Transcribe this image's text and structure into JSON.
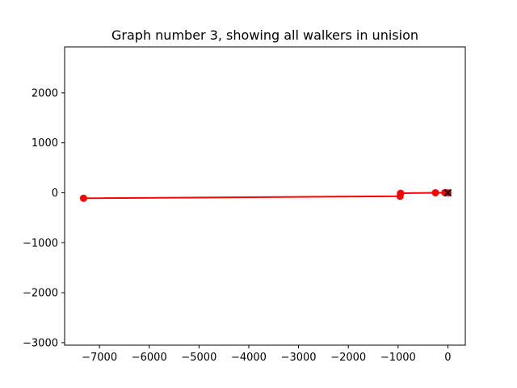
{
  "chart_data": {
    "type": "line",
    "title": "Graph number 3, showing all walkers in unision",
    "xlabel": "",
    "ylabel": "",
    "xlim": [
      -7700,
      350
    ],
    "ylim": [
      -3050,
      2920
    ],
    "xticks": [
      -7000,
      -6000,
      -5000,
      -4000,
      -3000,
      -2000,
      -1000,
      0
    ],
    "yticks": [
      -3000,
      -2000,
      -1000,
      0,
      1000,
      2000
    ],
    "xtick_labels": [
      "−7000",
      "−6000",
      "−5000",
      "−4000",
      "−3000",
      "−2000",
      "−1000",
      "0"
    ],
    "ytick_labels": [
      "−3000",
      "−2000",
      "−1000",
      "0",
      "1000",
      "2000"
    ],
    "grid": false,
    "line_color": "#ff0000",
    "start_marker_color": "#000000",
    "series": [
      {
        "color": "#ff0000",
        "marker": "circle",
        "points": [
          {
            "x": 0,
            "y": 0
          },
          {
            "x": -60,
            "y": 2
          },
          {
            "x": -250,
            "y": 0
          },
          {
            "x": -950,
            "y": -10
          },
          {
            "x": -960,
            "y": -70
          },
          {
            "x": -7320,
            "y": -110
          }
        ]
      }
    ],
    "start_marker": {
      "x": 0,
      "y": 0,
      "marker": "x"
    }
  }
}
